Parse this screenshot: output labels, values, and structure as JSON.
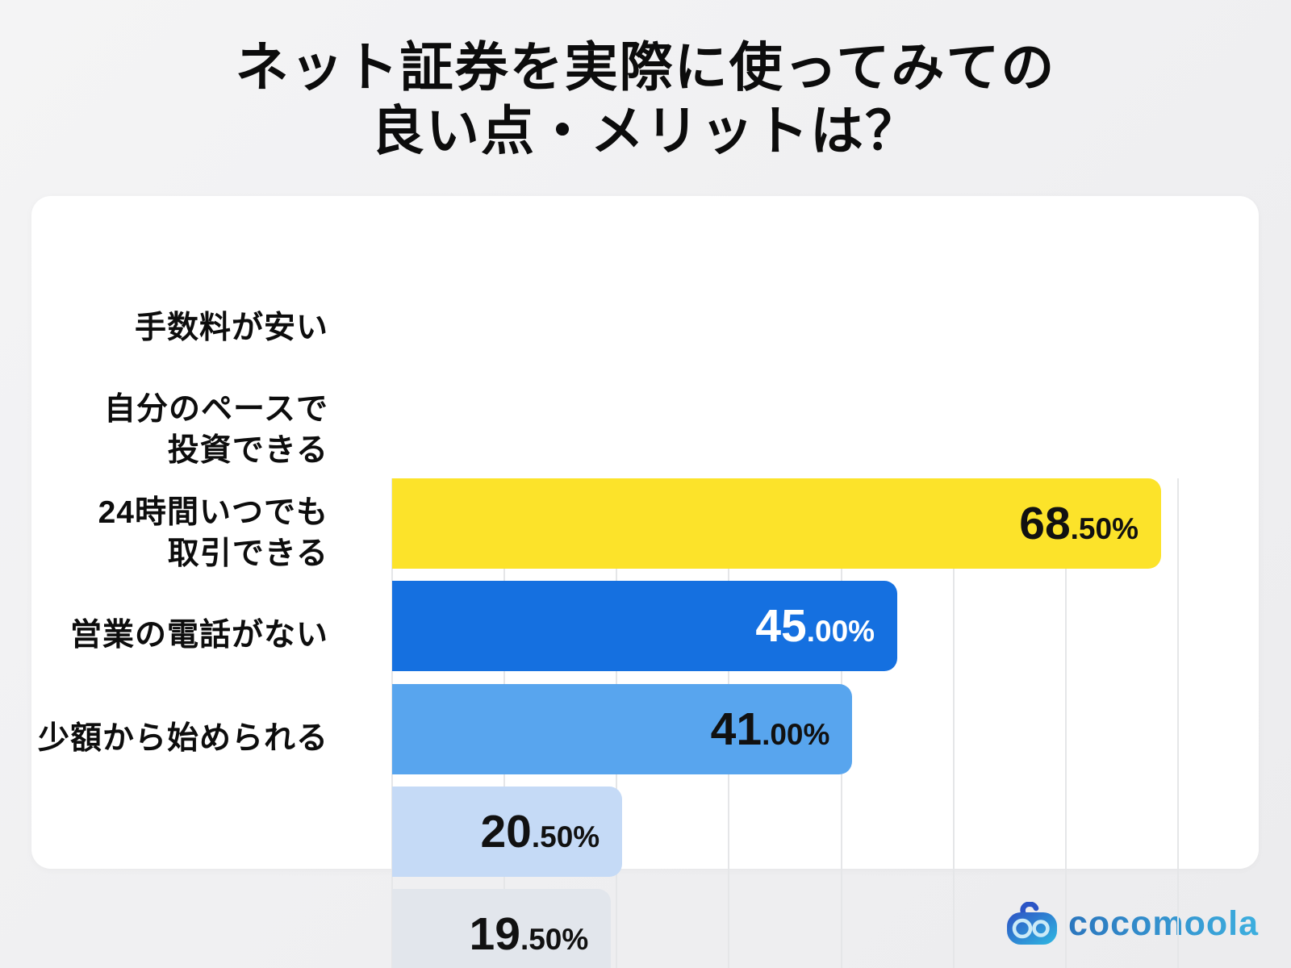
{
  "title": {
    "line1": "ネット証券を実際に使ってみての",
    "line2": "良い点・メリットは？"
  },
  "logo": {
    "text": "cocomoola"
  },
  "colors": {
    "page_background": "#F0F1F2",
    "card_background": "#FFFFFF",
    "gridline": "#E5E6E8",
    "title_text": "#0C0C0C"
  },
  "chart_data": {
    "type": "bar",
    "orientation": "horizontal",
    "title": "ネット証券を実際に使ってみての良い点・メリットは？",
    "categories": [
      "手数料が安い",
      "自分のペースで\n投資できる",
      "24時間いつでも\n取引できる",
      "営業の電話がない",
      "少額から始められる"
    ],
    "values": [
      68.5,
      45.0,
      41.0,
      20.5,
      19.5
    ],
    "value_labels": [
      "68.50%",
      "45.00%",
      "41.00%",
      "20.50%",
      "19.50%"
    ],
    "bar_colors": [
      "#FCE32A",
      "#1570E0",
      "#58A5EE",
      "#C5DAF6",
      "#E2E6EC"
    ],
    "value_text_colors": [
      "#111111",
      "#FFFFFF",
      "#111111",
      "#111111",
      "#111111"
    ],
    "xlabel": "",
    "ylabel": "",
    "xlim": [
      0,
      80
    ],
    "gridline_step": 10,
    "grid": true,
    "legend": false
  }
}
